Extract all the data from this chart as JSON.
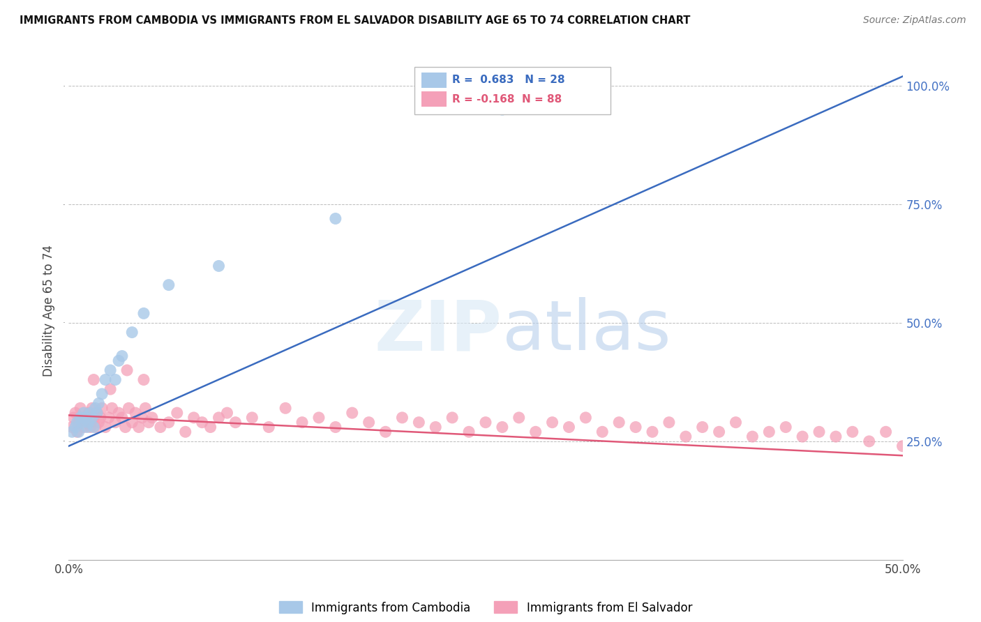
{
  "title": "IMMIGRANTS FROM CAMBODIA VS IMMIGRANTS FROM EL SALVADOR DISABILITY AGE 65 TO 74 CORRELATION CHART",
  "source": "Source: ZipAtlas.com",
  "ylabel": "Disability Age 65 to 74",
  "legend_blue_r": "R =  0.683",
  "legend_blue_n": "N = 28",
  "legend_pink_r": "R = -0.168",
  "legend_pink_n": "N = 88",
  "legend_label_blue": "Immigrants from Cambodia",
  "legend_label_pink": "Immigrants from El Salvador",
  "xlim": [
    0.0,
    0.5
  ],
  "ylim": [
    0.0,
    1.05
  ],
  "yticks": [
    0.25,
    0.5,
    0.75,
    1.0
  ],
  "ytick_labels": [
    "25.0%",
    "50.0%",
    "75.0%",
    "100.0%"
  ],
  "blue_color": "#a8c8e8",
  "pink_color": "#f4a0b8",
  "blue_line_color": "#3a6bbf",
  "pink_line_color": "#e05878",
  "grid_color": "#bbbbbb",
  "title_color": "#111111",
  "right_axis_color": "#4472c4",
  "tick_color": "#444444",
  "cambodia_x": [
    0.002,
    0.004,
    0.005,
    0.006,
    0.007,
    0.008,
    0.009,
    0.01,
    0.011,
    0.012,
    0.013,
    0.014,
    0.015,
    0.016,
    0.017,
    0.018,
    0.02,
    0.022,
    0.025,
    0.028,
    0.03,
    0.032,
    0.038,
    0.045,
    0.06,
    0.09,
    0.16,
    0.26
  ],
  "cambodia_y": [
    0.27,
    0.28,
    0.29,
    0.27,
    0.3,
    0.29,
    0.31,
    0.3,
    0.28,
    0.29,
    0.31,
    0.3,
    0.28,
    0.32,
    0.31,
    0.33,
    0.35,
    0.38,
    0.4,
    0.38,
    0.42,
    0.43,
    0.48,
    0.52,
    0.58,
    0.62,
    0.72,
    0.95
  ],
  "salvador_x": [
    0.002,
    0.003,
    0.004,
    0.005,
    0.006,
    0.007,
    0.008,
    0.009,
    0.01,
    0.011,
    0.012,
    0.013,
    0.014,
    0.015,
    0.016,
    0.017,
    0.018,
    0.019,
    0.02,
    0.022,
    0.024,
    0.026,
    0.028,
    0.03,
    0.032,
    0.034,
    0.036,
    0.038,
    0.04,
    0.042,
    0.044,
    0.046,
    0.048,
    0.05,
    0.055,
    0.06,
    0.065,
    0.07,
    0.075,
    0.08,
    0.085,
    0.09,
    0.095,
    0.1,
    0.11,
    0.12,
    0.13,
    0.14,
    0.15,
    0.16,
    0.17,
    0.18,
    0.19,
    0.2,
    0.21,
    0.22,
    0.23,
    0.24,
    0.25,
    0.26,
    0.27,
    0.28,
    0.29,
    0.3,
    0.31,
    0.32,
    0.33,
    0.34,
    0.35,
    0.36,
    0.37,
    0.38,
    0.39,
    0.4,
    0.41,
    0.42,
    0.43,
    0.44,
    0.45,
    0.46,
    0.47,
    0.48,
    0.49,
    0.5,
    0.015,
    0.025,
    0.035,
    0.045
  ],
  "salvador_y": [
    0.28,
    0.3,
    0.31,
    0.27,
    0.29,
    0.32,
    0.3,
    0.28,
    0.3,
    0.29,
    0.31,
    0.28,
    0.32,
    0.3,
    0.28,
    0.31,
    0.29,
    0.3,
    0.32,
    0.28,
    0.3,
    0.32,
    0.29,
    0.31,
    0.3,
    0.28,
    0.32,
    0.29,
    0.31,
    0.28,
    0.3,
    0.32,
    0.29,
    0.3,
    0.28,
    0.29,
    0.31,
    0.27,
    0.3,
    0.29,
    0.28,
    0.3,
    0.31,
    0.29,
    0.3,
    0.28,
    0.32,
    0.29,
    0.3,
    0.28,
    0.31,
    0.29,
    0.27,
    0.3,
    0.29,
    0.28,
    0.3,
    0.27,
    0.29,
    0.28,
    0.3,
    0.27,
    0.29,
    0.28,
    0.3,
    0.27,
    0.29,
    0.28,
    0.27,
    0.29,
    0.26,
    0.28,
    0.27,
    0.29,
    0.26,
    0.27,
    0.28,
    0.26,
    0.27,
    0.26,
    0.27,
    0.25,
    0.27,
    0.24,
    0.38,
    0.36,
    0.4,
    0.38
  ],
  "blue_line_x0": 0.0,
  "blue_line_y0": 0.24,
  "blue_line_x1": 0.5,
  "blue_line_y1": 1.02,
  "pink_line_x0": 0.0,
  "pink_line_y0": 0.305,
  "pink_line_x1": 0.5,
  "pink_line_y1": 0.22
}
